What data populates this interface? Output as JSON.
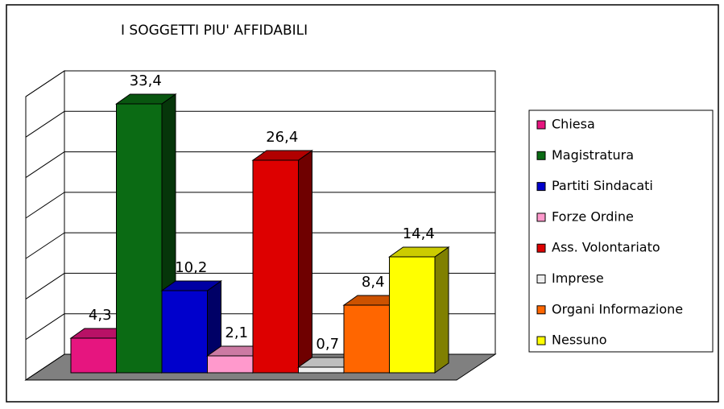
{
  "chart_data": {
    "type": "bar3d",
    "title": "I SOGGETTI PIU' AFFIDABILI",
    "categories": [
      "Chiesa",
      "Magistratura",
      "Partiti Sindacati",
      "Forze Ordine",
      "Ass. Volontariato",
      "Imprese",
      "Organi Informazione",
      "Nessuno"
    ],
    "values": [
      4.3,
      33.4,
      10.2,
      2.1,
      26.4,
      0.7,
      8.4,
      14.4
    ],
    "value_labels": [
      "4,3",
      "33,4",
      "10,2",
      "2,1",
      "26,4",
      "0,7",
      "8,4",
      "14,4"
    ],
    "colors": [
      "#e6157f",
      "#0b6b14",
      "#0000cc",
      "#ff99cc",
      "#dd0000",
      "#eeeeee",
      "#ff6600",
      "#ffff00"
    ],
    "ylim": [
      0,
      35
    ],
    "yticks": [
      0,
      5,
      10,
      15,
      20,
      25,
      30,
      35
    ],
    "grid": true,
    "legend": "right"
  }
}
